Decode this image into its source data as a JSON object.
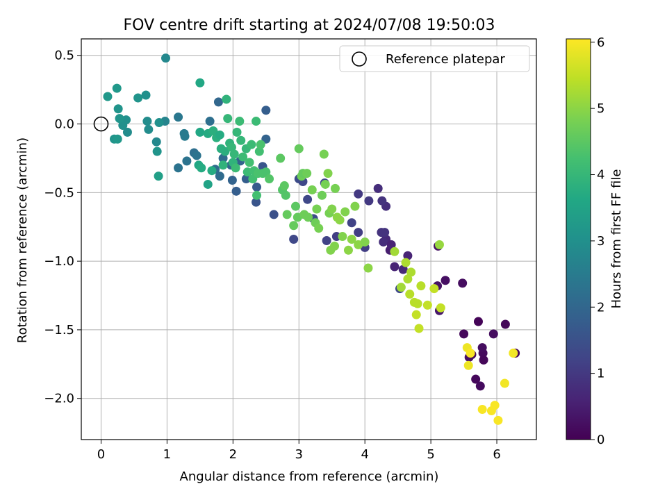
{
  "chart_data": {
    "type": "scatter",
    "title": "FOV centre drift starting at 2024/07/08 19:50:03",
    "xlabel": "Angular distance from reference (arcmin)",
    "ylabel": "Rotation from reference (arcmin)",
    "xlim": [
      -0.3,
      6.6
    ],
    "ylim": [
      -2.3,
      0.62
    ],
    "xticks": [
      0,
      1,
      2,
      3,
      4,
      5,
      6
    ],
    "yticks": [
      0.5,
      0.0,
      -0.5,
      -1.0,
      -1.5,
      -2.0
    ],
    "xtick_labels": [
      "0",
      "1",
      "2",
      "3",
      "4",
      "5",
      "6"
    ],
    "ytick_labels": [
      "0.5",
      "0.0",
      "−0.5",
      "−1.0",
      "−1.5",
      "−2.0"
    ],
    "grid": true,
    "colormap": "viridis",
    "colorbar": {
      "label": "Hours from first FF file",
      "range": [
        0,
        6.05
      ],
      "ticks": [
        0,
        1,
        2,
        3,
        4,
        5,
        6
      ],
      "tick_labels": [
        "0",
        "1",
        "2",
        "3",
        "4",
        "5",
        "6"
      ]
    },
    "legend": {
      "placement": "top-right",
      "entries": [
        "Reference platepar"
      ]
    },
    "reference_point": {
      "x": 0.0,
      "y": 0.0
    },
    "points": [
      {
        "x": 5.72,
        "y": -1.44,
        "c": 0.05
      },
      {
        "x": 6.13,
        "y": -1.46,
        "c": 0.1
      },
      {
        "x": 6.28,
        "y": -1.67,
        "c": 0.08
      },
      {
        "x": 5.79,
        "y": -1.67,
        "c": 0.15
      },
      {
        "x": 5.95,
        "y": -1.53,
        "c": 0.2
      },
      {
        "x": 5.62,
        "y": -1.68,
        "c": 0.1
      },
      {
        "x": 5.68,
        "y": -1.86,
        "c": 0.12
      },
      {
        "x": 5.75,
        "y": -1.91,
        "c": 0.18
      },
      {
        "x": 5.8,
        "y": -1.72,
        "c": 0.1
      },
      {
        "x": 5.78,
        "y": -1.63,
        "c": 0.2
      },
      {
        "x": 5.5,
        "y": -1.53,
        "c": 0.12
      },
      {
        "x": 5.48,
        "y": -1.16,
        "c": 0.2
      },
      {
        "x": 5.22,
        "y": -1.14,
        "c": 0.25
      },
      {
        "x": 5.11,
        "y": -0.89,
        "c": 0.3
      },
      {
        "x": 5.1,
        "y": -1.18,
        "c": 0.3
      },
      {
        "x": 5.13,
        "y": -1.36,
        "c": 0.4
      },
      {
        "x": 5.58,
        "y": -1.7,
        "c": 0.25
      },
      {
        "x": 4.65,
        "y": -0.96,
        "c": 0.6
      },
      {
        "x": 4.58,
        "y": -1.06,
        "c": 0.7
      },
      {
        "x": 4.45,
        "y": -1.04,
        "c": 0.6
      },
      {
        "x": 4.32,
        "y": -0.84,
        "c": 0.7
      },
      {
        "x": 4.28,
        "y": -0.86,
        "c": 0.8
      },
      {
        "x": 4.25,
        "y": -0.79,
        "c": 0.9
      },
      {
        "x": 4.3,
        "y": -0.79,
        "c": 0.9
      },
      {
        "x": 4.32,
        "y": -0.6,
        "c": 0.8
      },
      {
        "x": 4.26,
        "y": -0.56,
        "c": 0.9
      },
      {
        "x": 4.2,
        "y": -0.47,
        "c": 0.8
      },
      {
        "x": 4.06,
        "y": -0.56,
        "c": 1.0
      },
      {
        "x": 3.9,
        "y": -0.51,
        "c": 1.0
      },
      {
        "x": 3.9,
        "y": -0.79,
        "c": 1.1
      },
      {
        "x": 4.0,
        "y": -0.9,
        "c": 1.1
      },
      {
        "x": 4.38,
        "y": -0.92,
        "c": 0.5
      },
      {
        "x": 4.4,
        "y": -0.88,
        "c": 0.6
      },
      {
        "x": 4.53,
        "y": -1.2,
        "c": 1.3
      },
      {
        "x": 3.8,
        "y": -0.72,
        "c": 1.2
      },
      {
        "x": 3.57,
        "y": -0.82,
        "c": 1.1
      },
      {
        "x": 3.42,
        "y": -0.85,
        "c": 1.2
      },
      {
        "x": 3.39,
        "y": -0.43,
        "c": 1.3
      },
      {
        "x": 3.22,
        "y": -0.69,
        "c": 1.4
      },
      {
        "x": 3.0,
        "y": -0.4,
        "c": 1.4
      },
      {
        "x": 3.06,
        "y": -0.42,
        "c": 1.3
      },
      {
        "x": 3.13,
        "y": -0.55,
        "c": 1.3
      },
      {
        "x": 2.92,
        "y": -0.84,
        "c": 1.3
      },
      {
        "x": 2.62,
        "y": -0.66,
        "c": 1.5
      },
      {
        "x": 2.45,
        "y": -0.31,
        "c": 1.6
      },
      {
        "x": 2.35,
        "y": -0.57,
        "c": 1.6
      },
      {
        "x": 2.36,
        "y": -0.46,
        "c": 1.7
      },
      {
        "x": 2.5,
        "y": 0.1,
        "c": 1.8
      },
      {
        "x": 2.5,
        "y": -0.11,
        "c": 1.9
      },
      {
        "x": 2.2,
        "y": -0.4,
        "c": 1.8
      },
      {
        "x": 2.11,
        "y": -0.27,
        "c": 1.9
      },
      {
        "x": 2.05,
        "y": -0.49,
        "c": 1.8
      },
      {
        "x": 1.99,
        "y": -0.41,
        "c": 1.9
      },
      {
        "x": 1.97,
        "y": -0.3,
        "c": 2.0
      },
      {
        "x": 1.85,
        "y": -0.25,
        "c": 2.1
      },
      {
        "x": 1.73,
        "y": -0.33,
        "c": 2.1
      },
      {
        "x": 1.8,
        "y": -0.38,
        "c": 2.1
      },
      {
        "x": 1.78,
        "y": 0.16,
        "c": 2.0
      },
      {
        "x": 1.65,
        "y": 0.02,
        "c": 2.2
      },
      {
        "x": 1.41,
        "y": -0.21,
        "c": 2.2
      },
      {
        "x": 1.45,
        "y": -0.23,
        "c": 2.3
      },
      {
        "x": 1.3,
        "y": -0.27,
        "c": 2.3
      },
      {
        "x": 1.17,
        "y": -0.32,
        "c": 2.3
      },
      {
        "x": 1.17,
        "y": 0.05,
        "c": 2.4
      },
      {
        "x": 1.26,
        "y": -0.07,
        "c": 2.5
      },
      {
        "x": 1.27,
        "y": -0.09,
        "c": 2.5
      },
      {
        "x": 0.97,
        "y": 0.02,
        "c": 2.7
      },
      {
        "x": 0.98,
        "y": 0.48,
        "c": 2.8
      },
      {
        "x": 0.84,
        "y": -0.13,
        "c": 2.8
      },
      {
        "x": 0.85,
        "y": -0.2,
        "c": 3.1
      },
      {
        "x": 0.88,
        "y": 0.01,
        "c": 3.0
      },
      {
        "x": 0.72,
        "y": -0.04,
        "c": 2.9
      },
      {
        "x": 0.7,
        "y": 0.02,
        "c": 2.9
      },
      {
        "x": 0.68,
        "y": 0.21,
        "c": 3.0
      },
      {
        "x": 0.56,
        "y": 0.19,
        "c": 3.1
      },
      {
        "x": 0.4,
        "y": -0.06,
        "c": 2.9
      },
      {
        "x": 0.38,
        "y": 0.03,
        "c": 3.0
      },
      {
        "x": 0.33,
        "y": -0.01,
        "c": 3.0
      },
      {
        "x": 0.28,
        "y": 0.04,
        "c": 3.1
      },
      {
        "x": 0.26,
        "y": 0.11,
        "c": 3.1
      },
      {
        "x": 0.24,
        "y": 0.26,
        "c": 3.2
      },
      {
        "x": 0.1,
        "y": 0.2,
        "c": 3.2
      },
      {
        "x": 0.2,
        "y": -0.11,
        "c": 3.1
      },
      {
        "x": 0.25,
        "y": -0.11,
        "c": 3.2
      },
      {
        "x": 0.87,
        "y": -0.38,
        "c": 3.4
      },
      {
        "x": 1.62,
        "y": -0.44,
        "c": 3.5
      },
      {
        "x": 1.5,
        "y": 0.3,
        "c": 3.6
      },
      {
        "x": 1.48,
        "y": -0.3,
        "c": 3.6
      },
      {
        "x": 1.52,
        "y": -0.32,
        "c": 3.7
      },
      {
        "x": 1.5,
        "y": -0.06,
        "c": 3.6
      },
      {
        "x": 1.62,
        "y": -0.07,
        "c": 3.7
      },
      {
        "x": 1.68,
        "y": -0.34,
        "c": 3.7
      },
      {
        "x": 1.7,
        "y": -0.05,
        "c": 3.8
      },
      {
        "x": 1.75,
        "y": -0.1,
        "c": 3.8
      },
      {
        "x": 1.8,
        "y": -0.08,
        "c": 3.7
      },
      {
        "x": 1.82,
        "y": -0.18,
        "c": 3.8
      },
      {
        "x": 1.85,
        "y": -0.3,
        "c": 3.9
      },
      {
        "x": 1.88,
        "y": -0.2,
        "c": 3.8
      },
      {
        "x": 1.9,
        "y": 0.18,
        "c": 3.9
      },
      {
        "x": 1.92,
        "y": 0.04,
        "c": 4.0
      },
      {
        "x": 1.95,
        "y": -0.14,
        "c": 3.9
      },
      {
        "x": 1.98,
        "y": -0.17,
        "c": 4.0
      },
      {
        "x": 2.0,
        "y": -0.28,
        "c": 3.9
      },
      {
        "x": 2.02,
        "y": -0.22,
        "c": 4.0
      },
      {
        "x": 2.04,
        "y": -0.32,
        "c": 4.1
      },
      {
        "x": 2.06,
        "y": -0.06,
        "c": 4.0
      },
      {
        "x": 2.1,
        "y": 0.02,
        "c": 4.1
      },
      {
        "x": 2.12,
        "y": -0.12,
        "c": 4.0
      },
      {
        "x": 2.15,
        "y": -0.24,
        "c": 4.1
      },
      {
        "x": 2.2,
        "y": -0.18,
        "c": 4.0
      },
      {
        "x": 2.22,
        "y": -0.35,
        "c": 4.1
      },
      {
        "x": 2.25,
        "y": -0.28,
        "c": 4.2
      },
      {
        "x": 2.28,
        "y": -0.15,
        "c": 4.1
      },
      {
        "x": 2.3,
        "y": -0.4,
        "c": 4.2
      },
      {
        "x": 2.32,
        "y": -0.34,
        "c": 4.2
      },
      {
        "x": 2.35,
        "y": 0.02,
        "c": 4.1
      },
      {
        "x": 2.36,
        "y": -0.52,
        "c": 4.2
      },
      {
        "x": 2.38,
        "y": -0.36,
        "c": 4.3
      },
      {
        "x": 2.4,
        "y": -0.2,
        "c": 4.2
      },
      {
        "x": 2.42,
        "y": -0.15,
        "c": 4.3
      },
      {
        "x": 2.45,
        "y": -0.36,
        "c": 4.3
      },
      {
        "x": 2.5,
        "y": -0.35,
        "c": 4.3
      },
      {
        "x": 2.55,
        "y": -0.4,
        "c": 4.4
      },
      {
        "x": 2.75,
        "y": -0.48,
        "c": 4.4
      },
      {
        "x": 2.78,
        "y": -0.45,
        "c": 4.5
      },
      {
        "x": 2.8,
        "y": -0.52,
        "c": 4.4
      },
      {
        "x": 2.72,
        "y": -0.25,
        "c": 4.5
      },
      {
        "x": 2.82,
        "y": -0.66,
        "c": 4.6
      },
      {
        "x": 2.92,
        "y": -0.74,
        "c": 4.6
      },
      {
        "x": 2.95,
        "y": -0.6,
        "c": 4.5
      },
      {
        "x": 2.98,
        "y": -0.68,
        "c": 4.6
      },
      {
        "x": 3.0,
        "y": -0.18,
        "c": 4.6
      },
      {
        "x": 3.04,
        "y": -0.38,
        "c": 4.7
      },
      {
        "x": 3.06,
        "y": -0.36,
        "c": 4.6
      },
      {
        "x": 3.08,
        "y": -0.66,
        "c": 4.7
      },
      {
        "x": 3.12,
        "y": -0.36,
        "c": 4.7
      },
      {
        "x": 3.14,
        "y": -0.68,
        "c": 4.7
      },
      {
        "x": 3.2,
        "y": -0.48,
        "c": 4.8
      },
      {
        "x": 3.25,
        "y": -0.72,
        "c": 4.7
      },
      {
        "x": 3.27,
        "y": -0.62,
        "c": 4.8
      },
      {
        "x": 3.3,
        "y": -0.76,
        "c": 4.8
      },
      {
        "x": 3.35,
        "y": -0.52,
        "c": 4.7
      },
      {
        "x": 3.38,
        "y": -0.22,
        "c": 4.8
      },
      {
        "x": 3.4,
        "y": -0.44,
        "c": 4.8
      },
      {
        "x": 3.44,
        "y": -0.36,
        "c": 4.9
      },
      {
        "x": 3.46,
        "y": -0.65,
        "c": 4.8
      },
      {
        "x": 3.48,
        "y": -0.92,
        "c": 4.9
      },
      {
        "x": 3.5,
        "y": -0.62,
        "c": 4.9
      },
      {
        "x": 3.54,
        "y": -0.89,
        "c": 4.9
      },
      {
        "x": 3.55,
        "y": -0.47,
        "c": 4.8
      },
      {
        "x": 3.58,
        "y": -0.68,
        "c": 5.0
      },
      {
        "x": 3.62,
        "y": -0.7,
        "c": 5.0
      },
      {
        "x": 3.66,
        "y": -0.82,
        "c": 4.9
      },
      {
        "x": 3.7,
        "y": -0.64,
        "c": 4.9
      },
      {
        "x": 3.75,
        "y": -0.92,
        "c": 5.0
      },
      {
        "x": 3.8,
        "y": -0.84,
        "c": 5.0
      },
      {
        "x": 3.85,
        "y": -0.6,
        "c": 4.9
      },
      {
        "x": 3.9,
        "y": -0.88,
        "c": 5.0
      },
      {
        "x": 4.0,
        "y": -0.86,
        "c": 4.9
      },
      {
        "x": 4.05,
        "y": -1.05,
        "c": 5.0
      },
      {
        "x": 4.45,
        "y": -0.93,
        "c": 5.2
      },
      {
        "x": 4.55,
        "y": -1.19,
        "c": 5.2
      },
      {
        "x": 4.62,
        "y": -1.01,
        "c": 5.3
      },
      {
        "x": 4.65,
        "y": -1.13,
        "c": 5.3
      },
      {
        "x": 4.68,
        "y": -1.24,
        "c": 5.4
      },
      {
        "x": 4.7,
        "y": -1.08,
        "c": 5.3
      },
      {
        "x": 4.75,
        "y": -1.3,
        "c": 5.4
      },
      {
        "x": 4.78,
        "y": -1.39,
        "c": 5.5
      },
      {
        "x": 4.8,
        "y": -1.31,
        "c": 5.4
      },
      {
        "x": 4.82,
        "y": -1.49,
        "c": 5.5
      },
      {
        "x": 4.85,
        "y": -1.18,
        "c": 5.4
      },
      {
        "x": 4.95,
        "y": -1.32,
        "c": 5.5
      },
      {
        "x": 5.05,
        "y": -1.2,
        "c": 5.5
      },
      {
        "x": 5.13,
        "y": -0.88,
        "c": 5.1
      },
      {
        "x": 5.15,
        "y": -1.34,
        "c": 5.5
      },
      {
        "x": 5.55,
        "y": -1.63,
        "c": 5.9
      },
      {
        "x": 5.57,
        "y": -1.76,
        "c": 5.9
      },
      {
        "x": 5.6,
        "y": -1.67,
        "c": 6.0
      },
      {
        "x": 5.78,
        "y": -2.08,
        "c": 6.0
      },
      {
        "x": 5.92,
        "y": -2.09,
        "c": 6.0
      },
      {
        "x": 5.97,
        "y": -2.05,
        "c": 6.0
      },
      {
        "x": 6.02,
        "y": -2.16,
        "c": 6.0
      },
      {
        "x": 6.12,
        "y": -1.89,
        "c": 5.95
      },
      {
        "x": 6.25,
        "y": -1.67,
        "c": 5.95
      }
    ]
  }
}
